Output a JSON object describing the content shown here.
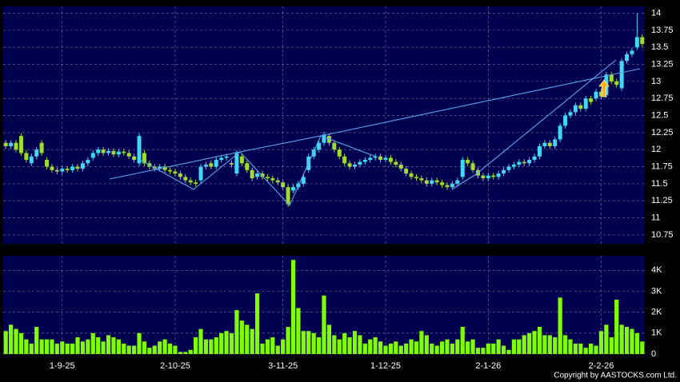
{
  "chart_data": [
    {
      "type": "candlestick",
      "up_color": "#40d8f8",
      "down_color": "#a0dc30",
      "grid": true,
      "ylim": [
        10.62,
        14.1
      ],
      "yticks": [
        10.75,
        11,
        11.25,
        11.5,
        11.75,
        12,
        12.25,
        12.5,
        12.75,
        13,
        13.25,
        13.5,
        13.75,
        14
      ],
      "open": [
        12.1,
        12.05,
        12.1,
        12.2,
        11.95,
        11.8,
        11.9,
        12.1,
        11.85,
        11.75,
        11.7,
        11.68,
        11.72,
        11.7,
        11.75,
        11.72,
        11.8,
        11.88,
        11.95,
        12.0,
        11.95,
        11.98,
        11.93,
        11.97,
        11.95,
        11.9,
        11.8,
        11.95,
        11.8,
        11.75,
        11.72,
        11.75,
        11.7,
        11.68,
        11.65,
        11.6,
        11.55,
        11.52,
        11.55,
        11.75,
        11.8,
        11.75,
        11.85,
        11.88,
        11.8,
        11.65,
        11.9,
        11.8,
        11.7,
        11.6,
        11.65,
        11.6,
        11.58,
        11.55,
        11.52,
        11.45,
        11.4,
        11.45,
        11.5,
        11.7,
        11.9,
        12.0,
        12.1,
        12.2,
        12.1,
        12.0,
        11.9,
        11.8,
        11.75,
        11.78,
        11.82,
        11.85,
        11.88,
        11.9,
        11.85,
        11.88,
        11.82,
        11.78,
        11.72,
        11.65,
        11.6,
        11.58,
        11.55,
        11.5,
        11.55,
        11.52,
        11.48,
        11.45,
        11.5,
        11.6,
        11.85,
        11.8,
        11.7,
        11.62,
        11.58,
        11.62,
        11.6,
        11.65,
        11.7,
        11.75,
        11.78,
        11.82,
        11.8,
        11.85,
        11.9,
        12.05,
        12.1,
        12.05,
        12.15,
        12.35,
        12.5,
        12.55,
        12.65,
        12.6,
        12.75,
        12.75,
        12.85,
        12.8,
        13.1,
        13.0,
        12.9,
        13.3,
        13.4,
        13.5,
        13.65
      ],
      "high": [
        12.14,
        12.14,
        12.14,
        12.24,
        11.99,
        11.94,
        12.04,
        12.14,
        11.89,
        11.79,
        11.74,
        11.76,
        11.76,
        11.79,
        11.79,
        11.84,
        11.89,
        11.99,
        12.04,
        12.04,
        12.02,
        12.02,
        12.01,
        12.01,
        11.99,
        11.94,
        12.24,
        11.99,
        11.84,
        11.79,
        11.79,
        11.79,
        11.74,
        11.72,
        11.69,
        11.64,
        11.59,
        11.56,
        11.79,
        11.82,
        11.84,
        11.89,
        11.92,
        11.94,
        11.84,
        11.99,
        11.94,
        11.84,
        11.74,
        11.69,
        11.69,
        11.64,
        11.62,
        11.59,
        11.56,
        11.49,
        11.49,
        11.54,
        11.64,
        11.94,
        12.04,
        12.14,
        12.26,
        12.24,
        12.14,
        12.04,
        11.94,
        11.84,
        11.82,
        11.86,
        11.89,
        11.92,
        11.94,
        11.94,
        11.92,
        11.92,
        11.86,
        11.82,
        11.76,
        11.69,
        11.64,
        11.62,
        11.59,
        11.59,
        11.59,
        11.56,
        11.52,
        11.54,
        11.59,
        11.89,
        11.89,
        11.84,
        11.74,
        11.66,
        11.66,
        11.66,
        11.69,
        11.74,
        11.79,
        11.82,
        11.86,
        11.86,
        11.89,
        11.94,
        12.09,
        12.14,
        12.14,
        12.19,
        12.39,
        12.54,
        12.59,
        12.69,
        12.69,
        12.79,
        12.79,
        12.89,
        12.89,
        13.14,
        13.14,
        13.04,
        13.34,
        13.44,
        13.49,
        14.0,
        13.69
      ],
      "low": [
        12.01,
        12.01,
        11.96,
        11.91,
        11.81,
        11.76,
        11.86,
        11.91,
        11.71,
        11.66,
        11.64,
        11.64,
        11.66,
        11.66,
        11.68,
        11.68,
        11.76,
        11.84,
        11.91,
        11.91,
        11.91,
        11.89,
        11.89,
        11.91,
        11.86,
        11.81,
        11.76,
        11.76,
        11.71,
        11.68,
        11.68,
        11.66,
        11.64,
        11.61,
        11.56,
        11.51,
        11.48,
        11.46,
        11.51,
        11.71,
        11.71,
        11.71,
        11.81,
        11.84,
        11.74,
        11.61,
        11.76,
        11.66,
        11.54,
        11.56,
        11.56,
        11.54,
        11.51,
        11.48,
        11.41,
        11.16,
        11.36,
        11.41,
        11.46,
        11.66,
        11.86,
        11.96,
        12.06,
        12.06,
        11.96,
        11.86,
        11.76,
        11.71,
        11.71,
        11.74,
        11.78,
        11.81,
        11.84,
        11.81,
        11.81,
        11.78,
        11.74,
        11.68,
        11.61,
        11.56,
        11.54,
        11.51,
        11.46,
        11.46,
        11.48,
        11.44,
        11.41,
        11.41,
        11.46,
        11.56,
        11.76,
        11.66,
        11.58,
        11.54,
        11.54,
        11.56,
        11.56,
        11.61,
        11.66,
        11.71,
        11.74,
        11.76,
        11.76,
        11.81,
        11.86,
        12.01,
        12.01,
        12.01,
        12.11,
        12.31,
        12.46,
        12.51,
        12.56,
        12.56,
        12.66,
        12.71,
        12.74,
        12.76,
        12.96,
        12.91,
        12.86,
        13.26,
        13.36,
        13.46,
        13.51
      ],
      "close": [
        12.05,
        12.1,
        12.0,
        11.95,
        11.85,
        11.9,
        12.0,
        11.95,
        11.75,
        11.7,
        11.68,
        11.72,
        11.7,
        11.75,
        11.72,
        11.8,
        11.85,
        11.95,
        12.0,
        11.95,
        11.98,
        11.93,
        11.97,
        11.95,
        11.9,
        11.85,
        12.2,
        11.8,
        11.75,
        11.72,
        11.75,
        11.7,
        11.68,
        11.65,
        11.6,
        11.55,
        11.52,
        11.5,
        11.75,
        11.78,
        11.75,
        11.85,
        11.88,
        11.9,
        11.78,
        11.95,
        11.8,
        11.7,
        11.58,
        11.65,
        11.6,
        11.58,
        11.55,
        11.52,
        11.45,
        11.2,
        11.45,
        11.5,
        11.6,
        11.9,
        12.0,
        12.1,
        12.22,
        12.1,
        12.0,
        11.9,
        11.8,
        11.75,
        11.78,
        11.82,
        11.85,
        11.88,
        11.9,
        11.85,
        11.88,
        11.82,
        11.78,
        11.72,
        11.65,
        11.6,
        11.58,
        11.55,
        11.5,
        11.55,
        11.52,
        11.48,
        11.45,
        11.5,
        11.55,
        11.85,
        11.8,
        11.7,
        11.62,
        11.58,
        11.62,
        11.6,
        11.65,
        11.7,
        11.75,
        11.78,
        11.82,
        11.8,
        11.85,
        11.9,
        12.05,
        12.1,
        12.05,
        12.15,
        12.35,
        12.5,
        12.55,
        12.65,
        12.6,
        12.75,
        12.7,
        12.85,
        12.78,
        13.1,
        13.0,
        12.95,
        13.3,
        13.4,
        13.45,
        13.65,
        13.55
      ]
    },
    {
      "type": "bar",
      "color": "#80ff00",
      "grid": true,
      "annotation": "Copyright by AASTOCKS.com Ltd.",
      "ylim": [
        0,
        4700
      ],
      "yticks": [
        0,
        {
          "value": 1000,
          "label": "1K"
        },
        {
          "value": 2000,
          "label": "2K"
        },
        {
          "value": 3000,
          "label": "3K"
        },
        {
          "value": 4000,
          "label": "4K"
        }
      ],
      "categories": [
        null,
        null,
        null,
        null,
        null,
        null,
        null,
        null,
        null,
        null,
        null,
        "1-9-25",
        null,
        null,
        null,
        null,
        null,
        null,
        null,
        null,
        null,
        null,
        null,
        null,
        null,
        null,
        null,
        null,
        null,
        null,
        null,
        null,
        null,
        "2-10-25",
        null,
        null,
        null,
        null,
        null,
        null,
        null,
        null,
        null,
        null,
        null,
        null,
        null,
        null,
        null,
        null,
        null,
        null,
        null,
        null,
        "3-11-25",
        null,
        null,
        null,
        null,
        null,
        null,
        null,
        null,
        null,
        null,
        null,
        null,
        null,
        null,
        null,
        null,
        null,
        null,
        null,
        "1-12-25",
        null,
        null,
        null,
        null,
        null,
        null,
        null,
        null,
        null,
        null,
        null,
        null,
        null,
        null,
        null,
        null,
        null,
        null,
        null,
        "2-1-26",
        null,
        null,
        null,
        null,
        null,
        null,
        null,
        null,
        null,
        null,
        null,
        null,
        null,
        null,
        null,
        null,
        null,
        null,
        null,
        null,
        null,
        "2-2-26",
        null,
        null,
        null,
        null,
        null,
        null,
        null,
        null
      ],
      "values": [
        1100,
        1400,
        1200,
        1000,
        700,
        500,
        1300,
        700,
        700,
        700,
        500,
        600,
        500,
        500,
        800,
        600,
        700,
        1000,
        800,
        600,
        900,
        800,
        700,
        500,
        400,
        400,
        1000,
        600,
        300,
        400,
        600,
        700,
        500,
        400,
        100,
        100,
        200,
        800,
        1200,
        700,
        700,
        800,
        1000,
        1100,
        1000,
        2100,
        1600,
        1400,
        1200,
        2900,
        500,
        700,
        800,
        400,
        700,
        1300,
        4500,
        2200,
        1100,
        1100,
        1000,
        800,
        2800,
        1400,
        900,
        700,
        1000,
        800,
        1100,
        900,
        500,
        700,
        800,
        600,
        400,
        500,
        600,
        400,
        500,
        700,
        600,
        1100,
        900,
        500,
        400,
        600,
        700,
        500,
        700,
        1300,
        600,
        700,
        300,
        300,
        500,
        500,
        700,
        400,
        200,
        700,
        700,
        900,
        1000,
        1100,
        1300,
        900,
        900,
        800,
        2700,
        900,
        700,
        500,
        500,
        300,
        500,
        400,
        1100,
        1400,
        800,
        2600,
        1400,
        1300,
        1200,
        1000,
        600
      ]
    }
  ]
}
